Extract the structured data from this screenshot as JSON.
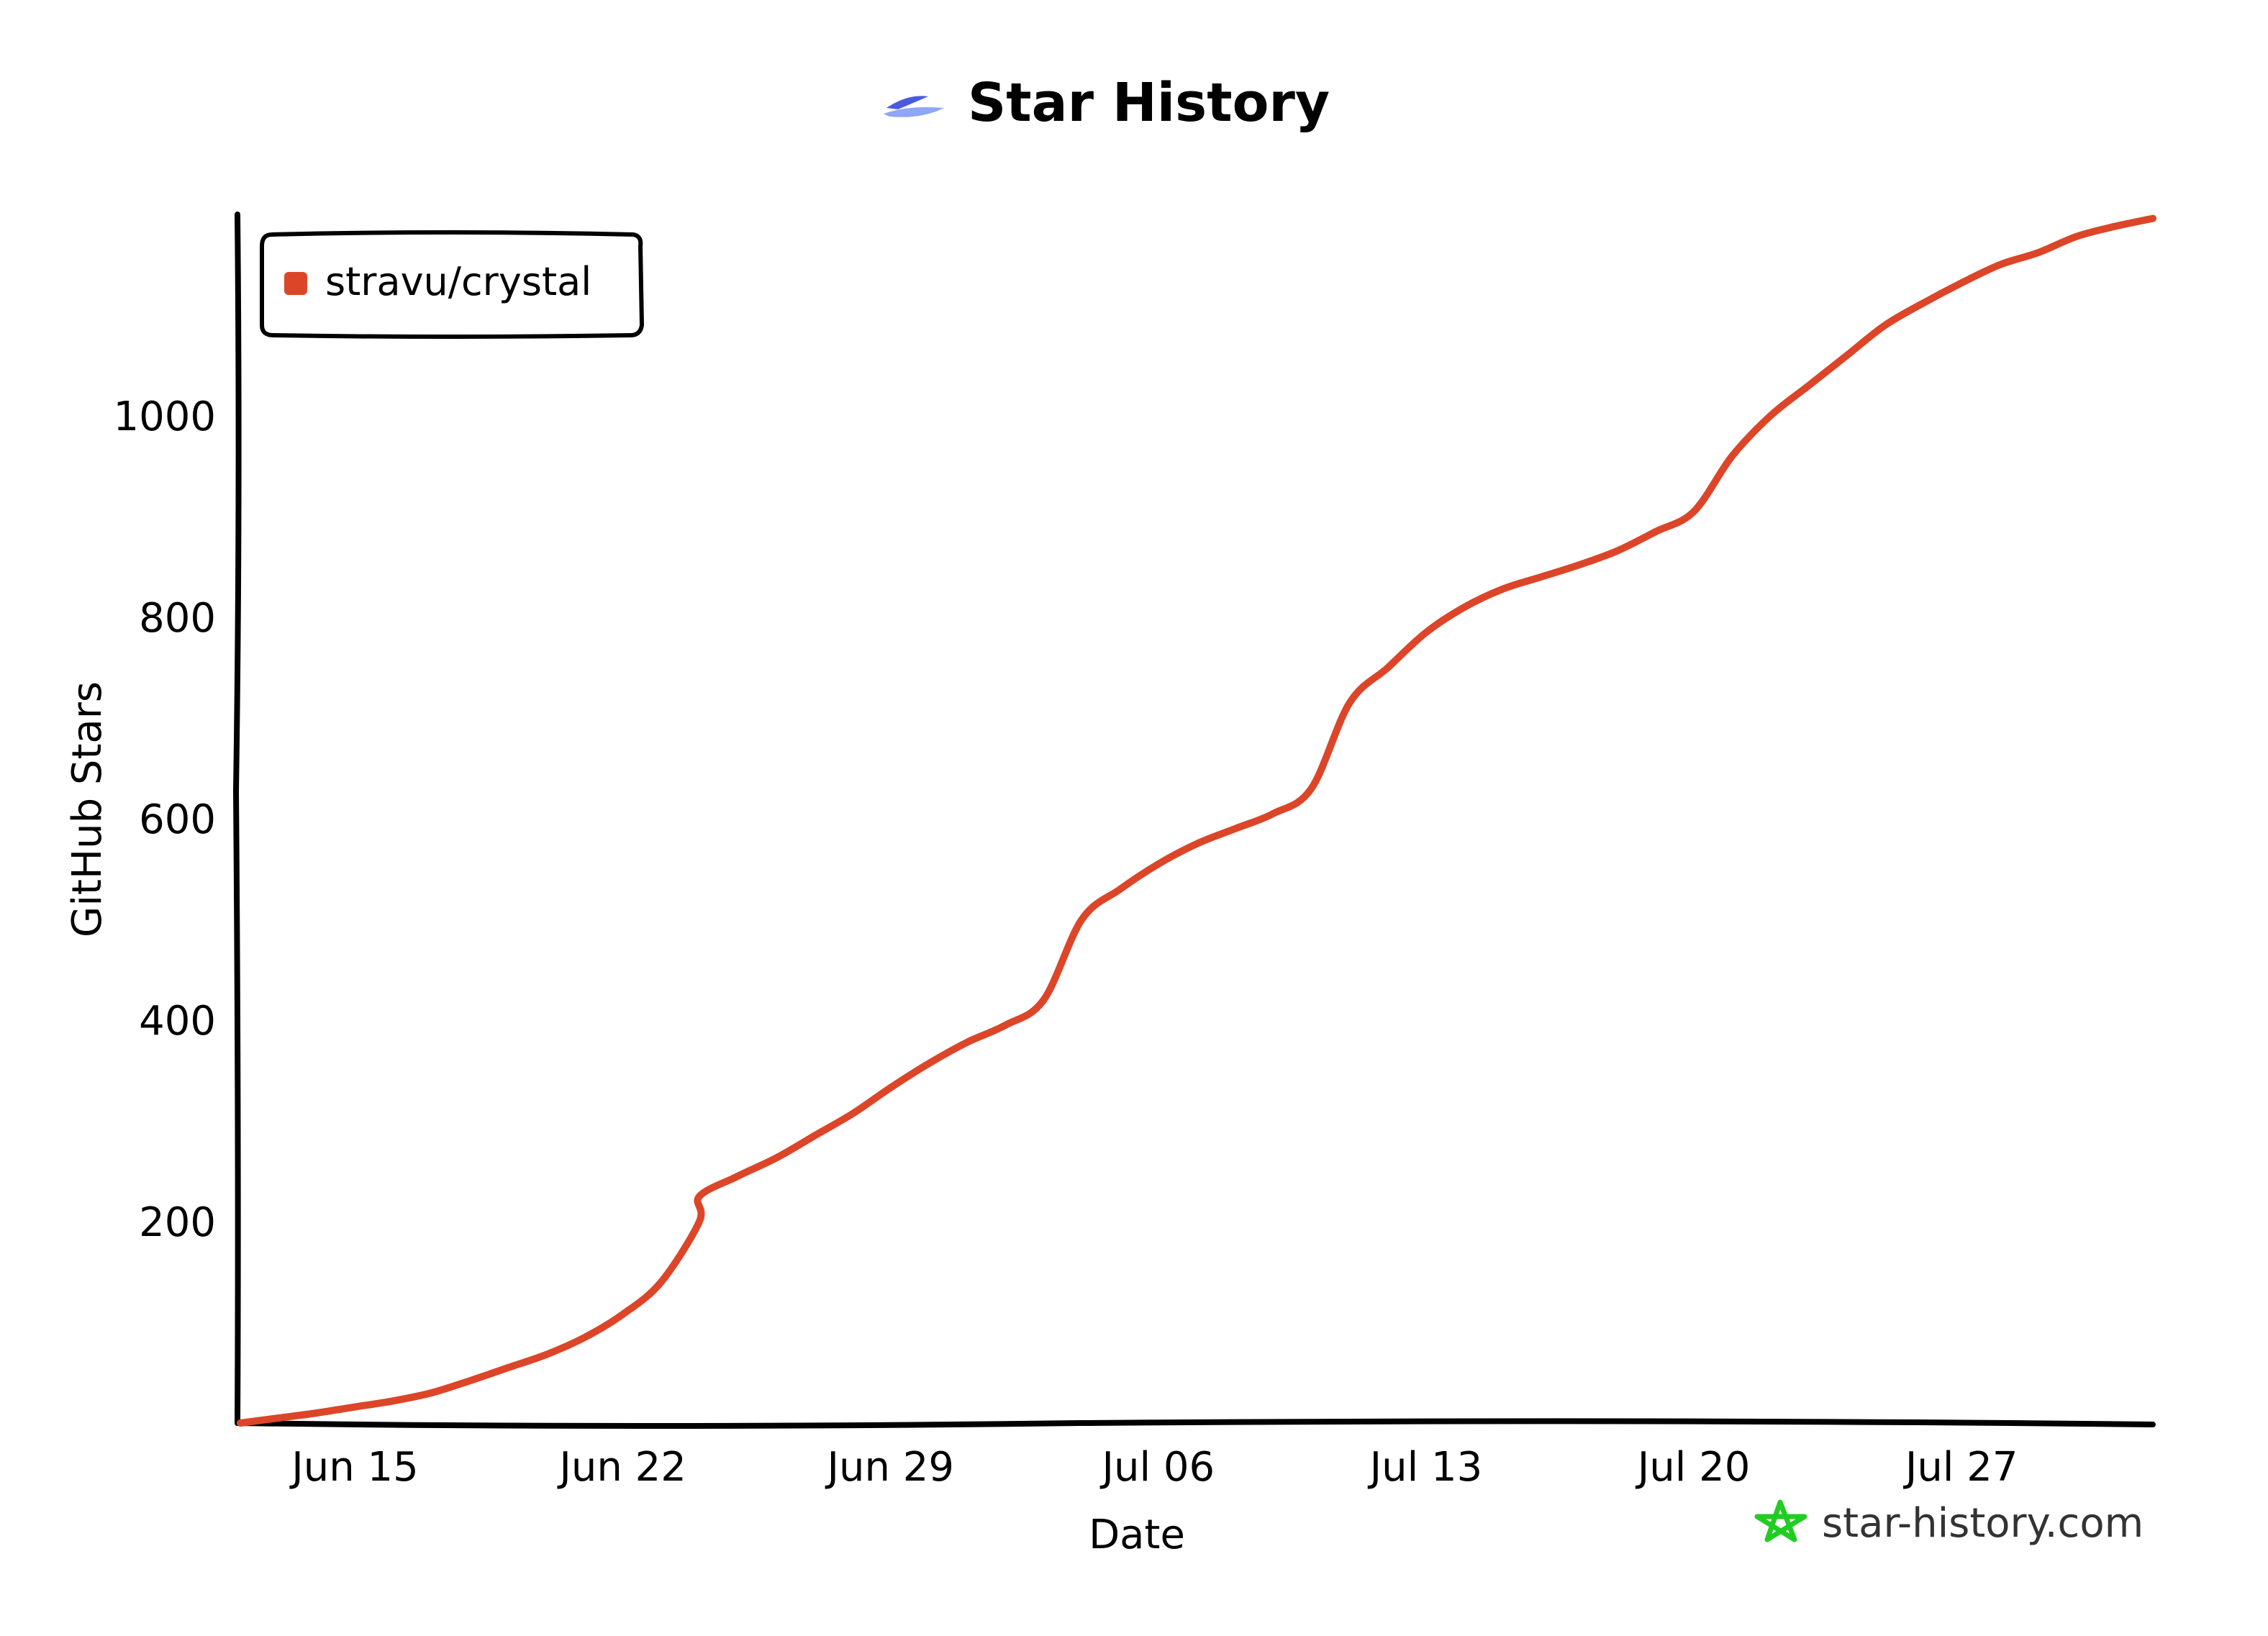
{
  "title": "Star History",
  "watermark": "star-history.com",
  "colors": {
    "series": "#dd4528",
    "logo_dark": "#4a5ae0",
    "logo_light": "#8fa5f5",
    "watermark_star": "#22cc22"
  },
  "chart_data": {
    "type": "line",
    "title": "Star History",
    "xlabel": "Date",
    "ylabel": "GitHub Stars",
    "xlim": [
      "2025-06-12",
      "2025-08-01"
    ],
    "ylim": [
      0,
      1200
    ],
    "x_ticks": [
      "Jun 15",
      "Jun 22",
      "Jun 29",
      "Jul 06",
      "Jul 13",
      "Jul 20",
      "Jul 27"
    ],
    "x_tick_dates": [
      "2025-06-15",
      "2025-06-22",
      "2025-06-29",
      "2025-07-06",
      "2025-07-13",
      "2025-07-20",
      "2025-07-27"
    ],
    "y_ticks": [
      200,
      400,
      600,
      800,
      1000
    ],
    "grid": false,
    "legend": "top-left",
    "series": [
      {
        "name": "stravu/crystal",
        "points": [
          [
            "2025-06-12",
            0
          ],
          [
            "2025-06-13",
            5
          ],
          [
            "2025-06-14",
            10
          ],
          [
            "2025-06-15",
            16
          ],
          [
            "2025-06-16",
            22
          ],
          [
            "2025-06-17",
            30
          ],
          [
            "2025-06-18",
            42
          ],
          [
            "2025-06-19",
            55
          ],
          [
            "2025-06-20",
            68
          ],
          [
            "2025-06-21",
            85
          ],
          [
            "2025-06-22",
            108
          ],
          [
            "2025-06-23",
            140
          ],
          [
            "2025-06-24",
            200
          ],
          [
            "2025-06-24",
            225
          ],
          [
            "2025-06-25",
            245
          ],
          [
            "2025-06-26",
            263
          ],
          [
            "2025-06-27",
            285
          ],
          [
            "2025-06-28",
            307
          ],
          [
            "2025-06-29",
            333
          ],
          [
            "2025-06-30",
            357
          ],
          [
            "2025-07-01",
            378
          ],
          [
            "2025-07-02",
            395
          ],
          [
            "2025-07-03",
            420
          ],
          [
            "2025-07-04",
            500
          ],
          [
            "2025-07-05",
            530
          ],
          [
            "2025-07-06",
            555
          ],
          [
            "2025-07-07",
            575
          ],
          [
            "2025-07-08",
            590
          ],
          [
            "2025-07-09",
            605
          ],
          [
            "2025-07-10",
            630
          ],
          [
            "2025-07-11",
            715
          ],
          [
            "2025-07-12",
            750
          ],
          [
            "2025-07-13",
            785
          ],
          [
            "2025-07-14",
            810
          ],
          [
            "2025-07-15",
            828
          ],
          [
            "2025-07-16",
            840
          ],
          [
            "2025-07-17",
            852
          ],
          [
            "2025-07-18",
            866
          ],
          [
            "2025-07-19",
            885
          ],
          [
            "2025-07-20",
            905
          ],
          [
            "2025-07-21",
            960
          ],
          [
            "2025-07-22",
            1000
          ],
          [
            "2025-07-23",
            1030
          ],
          [
            "2025-07-24",
            1060
          ],
          [
            "2025-07-25",
            1090
          ],
          [
            "2025-07-26",
            1112
          ],
          [
            "2025-07-27",
            1132
          ],
          [
            "2025-07-28",
            1150
          ],
          [
            "2025-07-29",
            1162
          ],
          [
            "2025-07-30",
            1178
          ],
          [
            "2025-07-31",
            1188
          ],
          [
            "2025-08-01",
            1196
          ]
        ]
      }
    ]
  }
}
